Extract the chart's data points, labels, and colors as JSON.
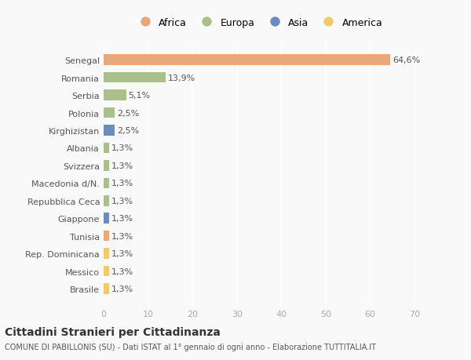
{
  "categories": [
    "Brasile",
    "Messico",
    "Rep. Dominicana",
    "Tunisia",
    "Giappone",
    "Repubblica Ceca",
    "Macedonia d/N.",
    "Svizzera",
    "Albania",
    "Kirghizistan",
    "Polonia",
    "Serbia",
    "Romania",
    "Senegal"
  ],
  "values": [
    1.3,
    1.3,
    1.3,
    1.3,
    1.3,
    1.3,
    1.3,
    1.3,
    1.3,
    2.5,
    2.5,
    5.1,
    13.9,
    64.6
  ],
  "labels": [
    "1,3%",
    "1,3%",
    "1,3%",
    "1,3%",
    "1,3%",
    "1,3%",
    "1,3%",
    "1,3%",
    "1,3%",
    "2,5%",
    "2,5%",
    "5,1%",
    "13,9%",
    "64,6%"
  ],
  "continents": [
    "America",
    "America",
    "America",
    "Africa",
    "Asia",
    "Europa",
    "Europa",
    "Europa",
    "Europa",
    "Asia",
    "Europa",
    "Europa",
    "Europa",
    "Africa"
  ],
  "colors": {
    "Africa": "#E8A87C",
    "Europa": "#ABBF8A",
    "Asia": "#6B8CBE",
    "America": "#F2C96E"
  },
  "legend_order": [
    "Africa",
    "Europa",
    "Asia",
    "America"
  ],
  "title": "Cittadini Stranieri per Cittadinanza",
  "subtitle": "COMUNE DI PABILLONIS (SU) - Dati ISTAT al 1° gennaio di ogni anno - Elaborazione TUTTITALIA.IT",
  "xlabel_ticks": [
    0,
    10,
    20,
    30,
    40,
    50,
    60,
    70
  ],
  "xlim": [
    0,
    70
  ],
  "background_color": "#f9f9f9",
  "grid_color": "#ffffff",
  "bar_height": 0.6
}
